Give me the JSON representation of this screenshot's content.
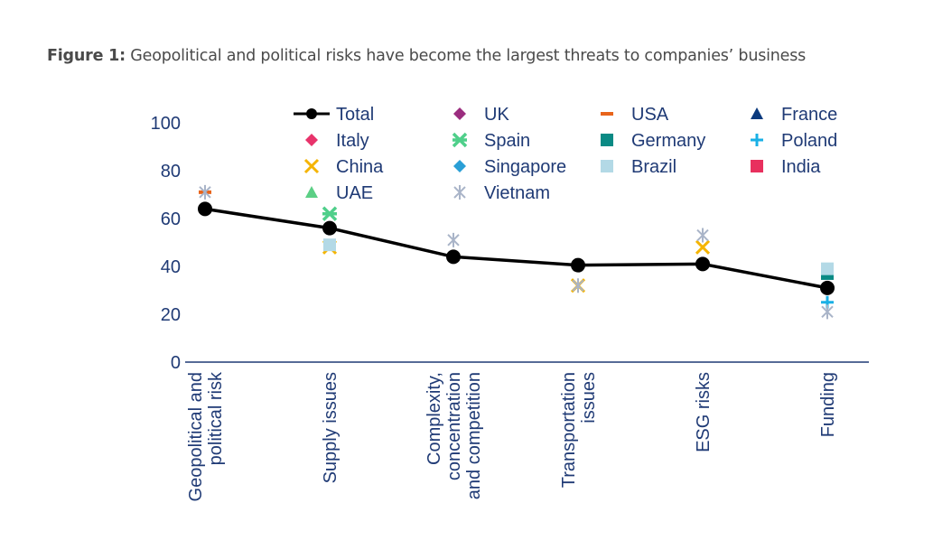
{
  "figure_label": "Figure 1:",
  "title": "Geopolitical and political risks have become the largest threats to companies’ business",
  "chart_data": {
    "type": "line",
    "categories": [
      "Geopolitical and political risk",
      "Supply issues",
      "Complexity, concentration and competition",
      "Transportation issues",
      "ESG risks",
      "Funding"
    ],
    "category_lines": [
      [
        "Geopolitical and",
        "political risk"
      ],
      [
        "Supply issues"
      ],
      [
        "Complexity,",
        "concentration",
        "and competition"
      ],
      [
        "Transportation",
        "issues"
      ],
      [
        "ESG risks"
      ],
      [
        "Funding"
      ]
    ],
    "ylim": [
      0,
      100
    ],
    "yticks": [
      0,
      20,
      40,
      60,
      80,
      100
    ],
    "grid": false,
    "legend_position": "top",
    "series": [
      {
        "name": "Total",
        "marker": "line-dot",
        "color": "#000000",
        "values": [
          64,
          56,
          44,
          40.5,
          41,
          31
        ]
      },
      {
        "name": "UK",
        "marker": "diamond",
        "color": "#9b2d7f",
        "values": [
          null,
          null,
          null,
          null,
          null,
          null
        ]
      },
      {
        "name": "USA",
        "marker": "dash",
        "color": "#e8641b",
        "values": [
          71,
          null,
          null,
          null,
          null,
          null
        ]
      },
      {
        "name": "France",
        "marker": "triangle",
        "color": "#0b3a7e",
        "values": [
          null,
          null,
          null,
          null,
          null,
          null
        ]
      },
      {
        "name": "Italy",
        "marker": "diamond",
        "color": "#e8336b",
        "values": [
          null,
          null,
          null,
          null,
          null,
          null
        ]
      },
      {
        "name": "Spain",
        "marker": "star",
        "color": "#4fcf8a",
        "values": [
          null,
          62,
          null,
          null,
          null,
          null
        ]
      },
      {
        "name": "Germany",
        "marker": "square",
        "color": "#0a8a84",
        "values": [
          null,
          null,
          null,
          null,
          null,
          37
        ]
      },
      {
        "name": "Poland",
        "marker": "plus",
        "color": "#19b0e6",
        "values": [
          null,
          null,
          null,
          null,
          null,
          25
        ]
      },
      {
        "name": "China",
        "marker": "x",
        "color": "#f5b400",
        "values": [
          null,
          48,
          null,
          32,
          48,
          null
        ]
      },
      {
        "name": "Singapore",
        "marker": "diamond",
        "color": "#2a9fd6",
        "values": [
          null,
          null,
          null,
          null,
          null,
          null
        ]
      },
      {
        "name": "Brazil",
        "marker": "square",
        "color": "#b3d9e6",
        "values": [
          null,
          49,
          null,
          null,
          null,
          39
        ]
      },
      {
        "name": "India",
        "marker": "square",
        "color": "#e8305e",
        "values": [
          null,
          null,
          null,
          null,
          null,
          null
        ]
      },
      {
        "name": "UAE",
        "marker": "triangle",
        "color": "#5ccf85",
        "values": [
          null,
          null,
          null,
          null,
          null,
          null
        ]
      },
      {
        "name": "Vietnam",
        "marker": "asterisk",
        "color": "#a9b4c8",
        "values": [
          71,
          null,
          51,
          32,
          53,
          21
        ]
      }
    ]
  }
}
